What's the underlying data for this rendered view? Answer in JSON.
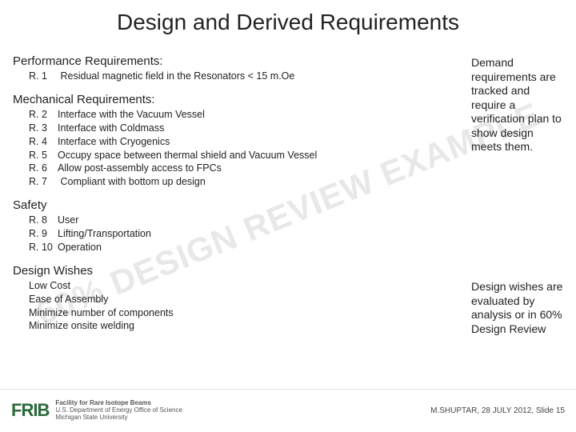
{
  "title": "Design and Derived Requirements",
  "watermark": "60% DESIGN REVIEW EXAMPLE",
  "sections": {
    "perf": {
      "heading": "Performance Requirements:",
      "items": [
        {
          "rn": "R. 1",
          "text": "Residual magnetic field in the Resonators < 15 m.Oe"
        }
      ]
    },
    "mech": {
      "heading": "Mechanical Requirements:",
      "items": [
        {
          "rn": "R. 2",
          "text": "Interface with the Vacuum Vessel"
        },
        {
          "rn": "R. 3",
          "text": "Interface with Coldmass"
        },
        {
          "rn": "R. 4",
          "text": "Interface with Cryogenics"
        },
        {
          "rn": "R. 5",
          "text": "Occupy space between thermal shield and Vacuum Vessel"
        },
        {
          "rn": "R. 6",
          "text": "Allow post-assembly access to FPCs"
        },
        {
          "rn": "R. 7",
          "text": " Compliant with bottom up design"
        }
      ]
    },
    "safety": {
      "heading": "Safety",
      "items": [
        {
          "rn": "R. 8",
          "text": "User"
        },
        {
          "rn": "R. 9",
          "text": "Lifting/Transportation"
        },
        {
          "rn": "R. 10",
          "text": "Operation"
        }
      ]
    },
    "wishes": {
      "heading": "Design Wishes",
      "items": [
        {
          "text": "Low Cost"
        },
        {
          "text": "Ease of Assembly"
        },
        {
          "text": "Minimize number of components"
        },
        {
          "text": "Minimize onsite welding"
        }
      ]
    }
  },
  "notes": {
    "top": "Demand requirements are tracked and require a verification plan to show design meets them.",
    "bottom": "Design wishes are evaluated by analysis or in 60% Design Review"
  },
  "footer": {
    "logo_text": "FRIB",
    "logo_sub1": "Facility for Rare Isotope Beams",
    "logo_sub2": "U.S. Department of Energy Office of Science",
    "logo_sub3": "Michigan State University",
    "right": "M.SHUPTAR, 28 JULY 2012, Slide 15"
  },
  "colors": {
    "title": "#222222",
    "text": "#222222",
    "watermark": "#e8e8e8",
    "logo_green": "#2a6a3a",
    "footer_border": "#e0e0e0",
    "background": "#ffffff"
  },
  "typography": {
    "title_pt": 28,
    "section_pt": 15,
    "item_pt": 12.5,
    "note_pt": 14,
    "watermark_pt": 42,
    "footer_right_pt": 10
  }
}
